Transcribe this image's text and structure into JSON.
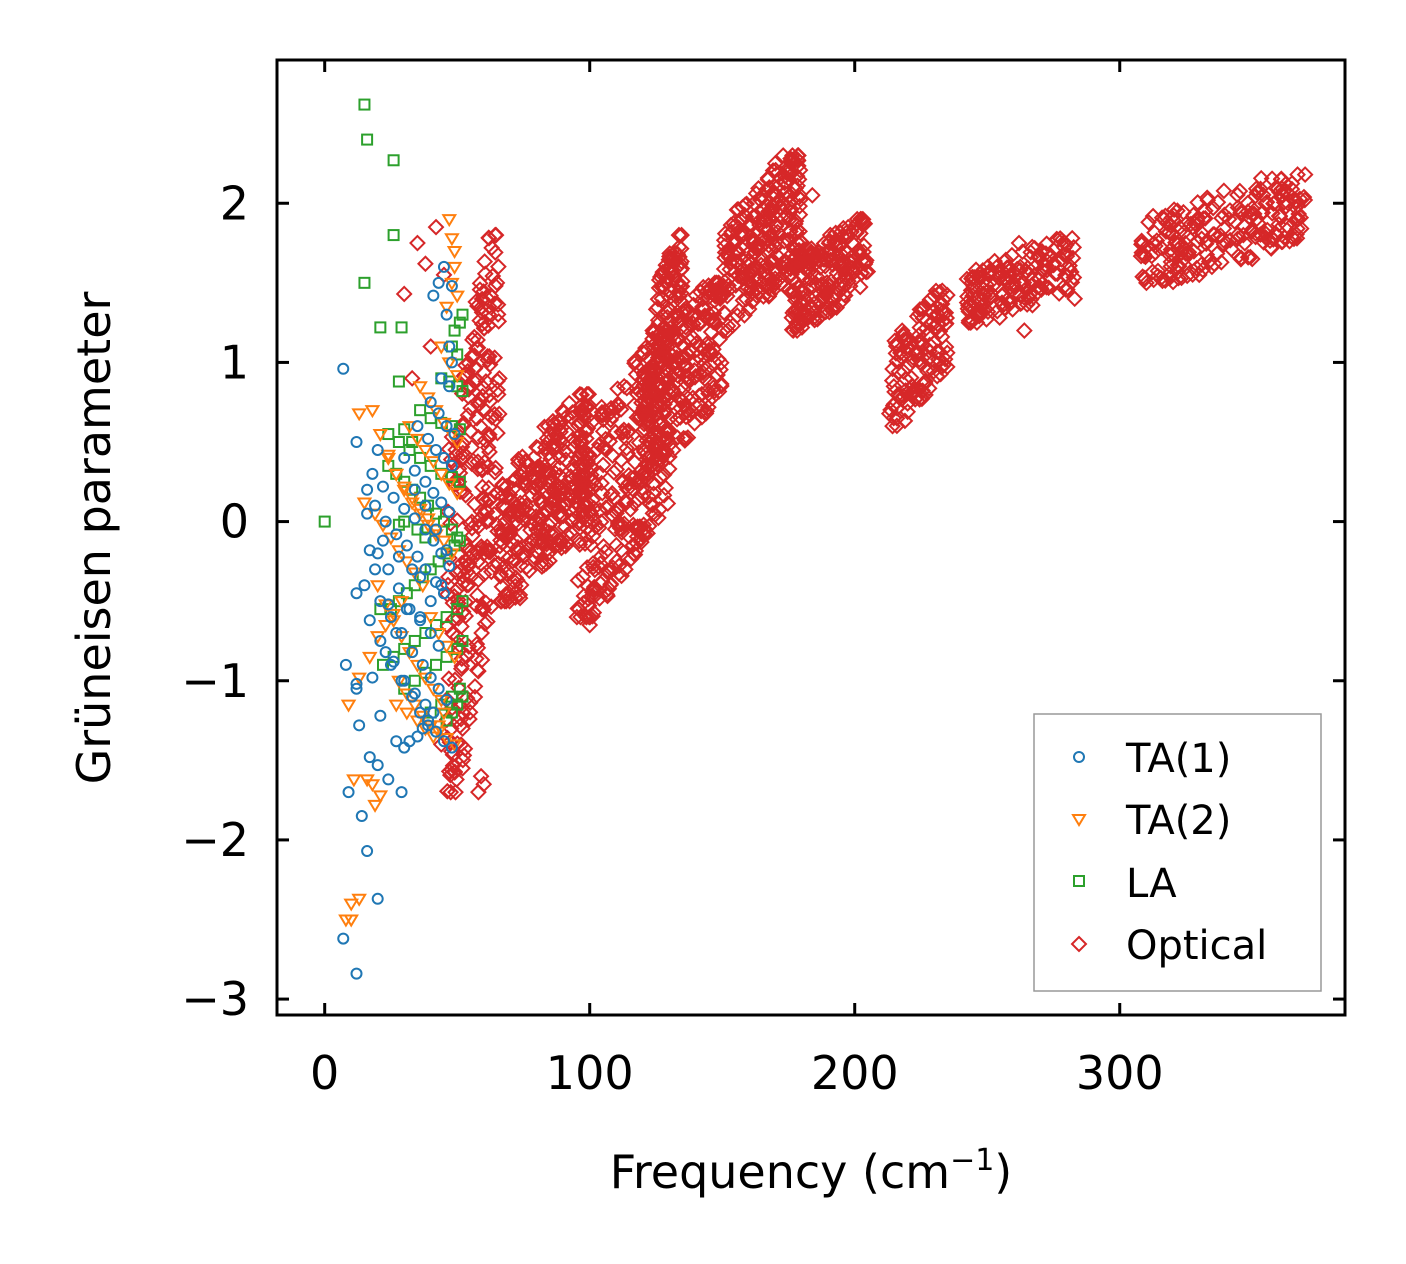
{
  "chart_data": {
    "type": "scatter",
    "xlabel": "Frequency (cm",
    "xlabel_sup": "−1",
    "xlabel_close": ")",
    "ylabel": "Grüneisen parameter",
    "xlim": [
      -18,
      385
    ],
    "ylim": [
      -3.1,
      2.9
    ],
    "xticks": [
      0,
      100,
      200,
      300
    ],
    "xtick_labels": [
      "0",
      "100",
      "200",
      "300"
    ],
    "yticks": [
      -3,
      -2,
      -1,
      0,
      1,
      2
    ],
    "ytick_labels": [
      "−3",
      "−2",
      "−1",
      "0",
      "1",
      "2"
    ],
    "legend_position": "lower-right",
    "series": [
      {
        "name": "TA(1)",
        "marker": "circle",
        "color": "#1f77b4",
        "x": [
          7,
          12,
          20,
          12,
          17,
          24,
          8,
          12,
          21,
          27,
          17,
          24,
          29,
          20,
          13,
          18,
          23,
          27,
          31,
          15,
          19,
          16,
          22,
          28,
          33,
          36,
          12,
          17,
          21,
          26,
          30,
          34,
          38,
          41,
          20,
          24,
          28,
          32,
          36,
          40,
          43,
          16,
          19,
          23,
          27,
          31,
          35,
          38,
          42,
          45,
          18,
          22,
          26,
          30,
          34,
          38,
          41,
          44,
          47,
          21,
          25,
          29,
          33,
          37,
          40,
          43,
          46,
          25,
          29,
          33,
          36,
          39,
          42,
          45,
          48,
          30,
          34,
          38,
          41,
          44,
          47,
          35,
          39,
          42,
          45,
          48,
          40,
          43,
          46,
          49,
          44,
          47,
          48,
          47,
          46,
          48,
          45,
          43,
          41,
          39,
          37,
          35,
          32,
          30,
          34,
          38,
          42,
          46,
          44,
          40,
          36
        ],
        "y": [
          0.96,
          0.5,
          0.45,
          -1.02,
          -0.18,
          -0.52,
          -0.9,
          -1.05,
          -1.22,
          -1.38,
          -1.48,
          -1.62,
          -1.7,
          -1.53,
          -1.28,
          -0.98,
          -0.82,
          -0.7,
          -0.55,
          -0.4,
          -0.3,
          0.05,
          -0.12,
          -0.22,
          -0.3,
          -0.35,
          -0.45,
          -0.62,
          -0.75,
          -0.88,
          -1.0,
          -1.08,
          -1.15,
          -1.2,
          -0.2,
          -0.3,
          -0.42,
          -0.55,
          -0.62,
          -0.7,
          -0.78,
          0.2,
          0.1,
          0.0,
          -0.08,
          -0.15,
          -0.22,
          -0.3,
          -0.38,
          -0.45,
          0.3,
          0.22,
          0.15,
          0.08,
          0.02,
          -0.05,
          -0.12,
          -0.2,
          -0.28,
          -0.5,
          -0.6,
          -0.7,
          -0.82,
          -0.9,
          -0.98,
          -1.05,
          -1.12,
          -0.9,
          -1.0,
          -1.1,
          -1.2,
          -1.28,
          -1.32,
          -1.38,
          -1.42,
          0.4,
          0.32,
          0.25,
          0.18,
          0.12,
          0.06,
          0.6,
          0.52,
          0.45,
          0.4,
          0.35,
          0.75,
          0.68,
          0.6,
          0.55,
          0.9,
          0.85,
          1.0,
          1.1,
          1.3,
          1.48,
          1.6,
          1.5,
          1.42,
          -1.25,
          -1.3,
          -1.35,
          -1.38,
          -1.42,
          0.2,
          0.1,
          -0.05,
          -0.18,
          -0.4,
          -0.5,
          -0.6
        ],
        "outliers_x": [
          7,
          12,
          20,
          16,
          9,
          14
        ],
        "outliers_y": [
          -2.62,
          -2.84,
          -2.37,
          -2.07,
          -1.7,
          -1.85
        ]
      },
      {
        "name": "TA(2)",
        "marker": "triangle-down",
        "color": "#ff7f0e",
        "x": [
          8,
          10,
          13,
          16,
          18,
          21,
          9,
          13,
          17,
          20,
          23,
          26,
          29,
          15,
          19,
          22,
          25,
          28,
          31,
          34,
          37,
          18,
          21,
          24,
          27,
          30,
          33,
          36,
          39,
          42,
          20,
          23,
          26,
          29,
          32,
          35,
          38,
          41,
          44,
          24,
          27,
          30,
          33,
          36,
          39,
          42,
          45,
          48,
          28,
          31,
          34,
          37,
          40,
          43,
          46,
          49,
          32,
          35,
          38,
          41,
          44,
          47,
          50,
          36,
          39,
          42,
          45,
          48,
          50,
          40,
          43,
          46,
          49,
          44,
          47,
          50,
          46,
          48,
          49,
          47,
          48,
          49,
          50,
          45,
          43,
          41,
          38,
          35,
          31,
          27
        ],
        "y": [
          -2.5,
          -2.4,
          -2.37,
          -1.62,
          -1.65,
          -1.72,
          -1.15,
          -0.98,
          -0.85,
          -0.72,
          -0.65,
          -0.58,
          -0.5,
          0.12,
          0.05,
          -0.02,
          -0.1,
          -0.18,
          -0.25,
          -0.32,
          -0.4,
          0.7,
          0.55,
          0.42,
          0.3,
          0.2,
          0.12,
          0.05,
          -0.02,
          -0.08,
          -0.4,
          -0.52,
          -0.62,
          -0.72,
          -0.82,
          -0.9,
          -0.98,
          -1.05,
          -1.12,
          0.4,
          0.3,
          0.22,
          0.15,
          0.08,
          0.02,
          -0.05,
          -0.12,
          -0.2,
          -1.0,
          -1.08,
          -1.15,
          -1.22,
          -1.28,
          -1.32,
          -1.36,
          -1.4,
          0.6,
          0.52,
          0.45,
          0.38,
          0.3,
          0.24,
          0.18,
          0.85,
          0.78,
          0.7,
          0.62,
          0.55,
          0.5,
          -0.6,
          -0.7,
          -0.78,
          -0.85,
          1.1,
          1.0,
          0.92,
          1.35,
          1.5,
          1.7,
          1.9,
          1.78,
          1.6,
          1.42,
          -1.2,
          -1.28,
          -1.35,
          -1.3,
          -1.25,
          -1.2,
          -1.15
        ],
        "outliers_x": [
          13,
          19,
          10,
          11
        ],
        "outliers_y": [
          0.68,
          -1.78,
          -2.5,
          -1.62
        ]
      },
      {
        "name": "LA",
        "marker": "square",
        "color": "#2ca02c",
        "x": [
          15,
          16,
          26,
          26,
          15,
          21,
          29,
          28,
          30,
          33,
          28,
          30,
          35,
          38,
          24,
          27,
          30,
          33,
          36,
          39,
          42,
          45,
          48,
          50,
          25,
          28,
          31,
          34,
          37,
          40,
          43,
          46,
          49,
          51,
          22,
          26,
          30,
          34,
          38,
          42,
          46,
          50,
          52,
          24,
          28,
          32,
          36,
          40,
          44,
          48,
          51,
          30,
          34,
          38,
          42,
          46,
          50,
          52,
          36,
          40,
          44,
          48,
          51,
          40,
          44,
          48,
          51,
          44,
          47,
          50,
          52,
          46,
          48,
          50,
          52,
          49,
          51,
          52,
          48,
          50
        ],
        "y": [
          2.62,
          2.4,
          2.27,
          1.8,
          1.5,
          1.22,
          1.22,
          0.88,
          0.58,
          0.5,
          -0.02,
          0.0,
          -0.05,
          -0.1,
          0.35,
          0.3,
          0.25,
          0.2,
          0.15,
          0.1,
          0.05,
          0.0,
          -0.05,
          -0.1,
          -0.55,
          -0.5,
          -0.45,
          -0.4,
          -0.35,
          -0.3,
          -0.25,
          -0.2,
          -0.15,
          -0.12,
          -0.9,
          -0.85,
          -0.8,
          -0.75,
          -0.7,
          -0.65,
          -0.6,
          -0.55,
          -0.5,
          0.55,
          0.5,
          0.45,
          0.4,
          0.35,
          0.3,
          0.28,
          0.25,
          -1.05,
          -1.0,
          -0.95,
          -0.9,
          -0.85,
          -0.8,
          -0.75,
          0.7,
          0.65,
          0.62,
          0.6,
          0.58,
          -1.2,
          -1.15,
          -1.1,
          -1.05,
          0.9,
          0.88,
          0.85,
          0.82,
          -1.25,
          -1.2,
          -1.15,
          -1.1,
          1.2,
          1.25,
          1.3,
          1.1,
          1.05
        ],
        "outliers_x": [
          0,
          21
        ],
        "outliers_y": [
          0.0,
          -0.55
        ]
      },
      {
        "name": "Optical",
        "marker": "diamond",
        "color": "#d62728",
        "clusters": [
          {
            "x": [
              46,
              66
            ],
            "y": [
              -1.7,
              1.8
            ],
            "n": 260
          },
          {
            "x": [
              66,
              100
            ],
            "y": [
              -0.5,
              0.8
            ],
            "n": 320
          },
          {
            "x": [
              95,
              130
            ],
            "y": [
              -0.6,
              1.2
            ],
            "n": 300
          },
          {
            "x": [
              120,
              150
            ],
            "y": [
              0.3,
              1.5
            ],
            "n": 260
          },
          {
            "x": [
              125,
              135
            ],
            "y": [
              1.0,
              1.8
            ],
            "n": 80
          },
          {
            "x": [
              150,
              180
            ],
            "y": [
              1.2,
              2.3
            ],
            "n": 260
          },
          {
            "x": [
              175,
              205
            ],
            "y": [
              1.2,
              1.9
            ],
            "n": 200
          },
          {
            "x": [
              213,
              235
            ],
            "y": [
              0.6,
              1.45
            ],
            "n": 130
          },
          {
            "x": [
              242,
              283
            ],
            "y": [
              1.25,
              1.78
            ],
            "n": 170
          },
          {
            "x": [
              308,
              370
            ],
            "y": [
              1.5,
              2.18
            ],
            "n": 220
          }
        ],
        "outliers_x": [
          30,
          35,
          38,
          42,
          45,
          40,
          33,
          44,
          58,
          60,
          63,
          65,
          57,
          52,
          59,
          62,
          100,
          96,
          113,
          118,
          170,
          173,
          179,
          184,
          230,
          262,
          247,
          264,
          283,
          330,
          350
        ],
        "outliers_y": [
          1.43,
          1.75,
          1.62,
          1.85,
          1.55,
          1.1,
          0.9,
          -1.4,
          -1.7,
          -1.65,
          1.72,
          1.5,
          1.38,
          -1.55,
          -1.6,
          1.78,
          -0.65,
          -0.55,
          0.85,
          0.8,
          2.25,
          2.3,
          2.15,
          2.05,
          1.42,
          1.75,
          1.3,
          1.2,
          1.4,
          1.55,
          1.65
        ]
      }
    ]
  }
}
